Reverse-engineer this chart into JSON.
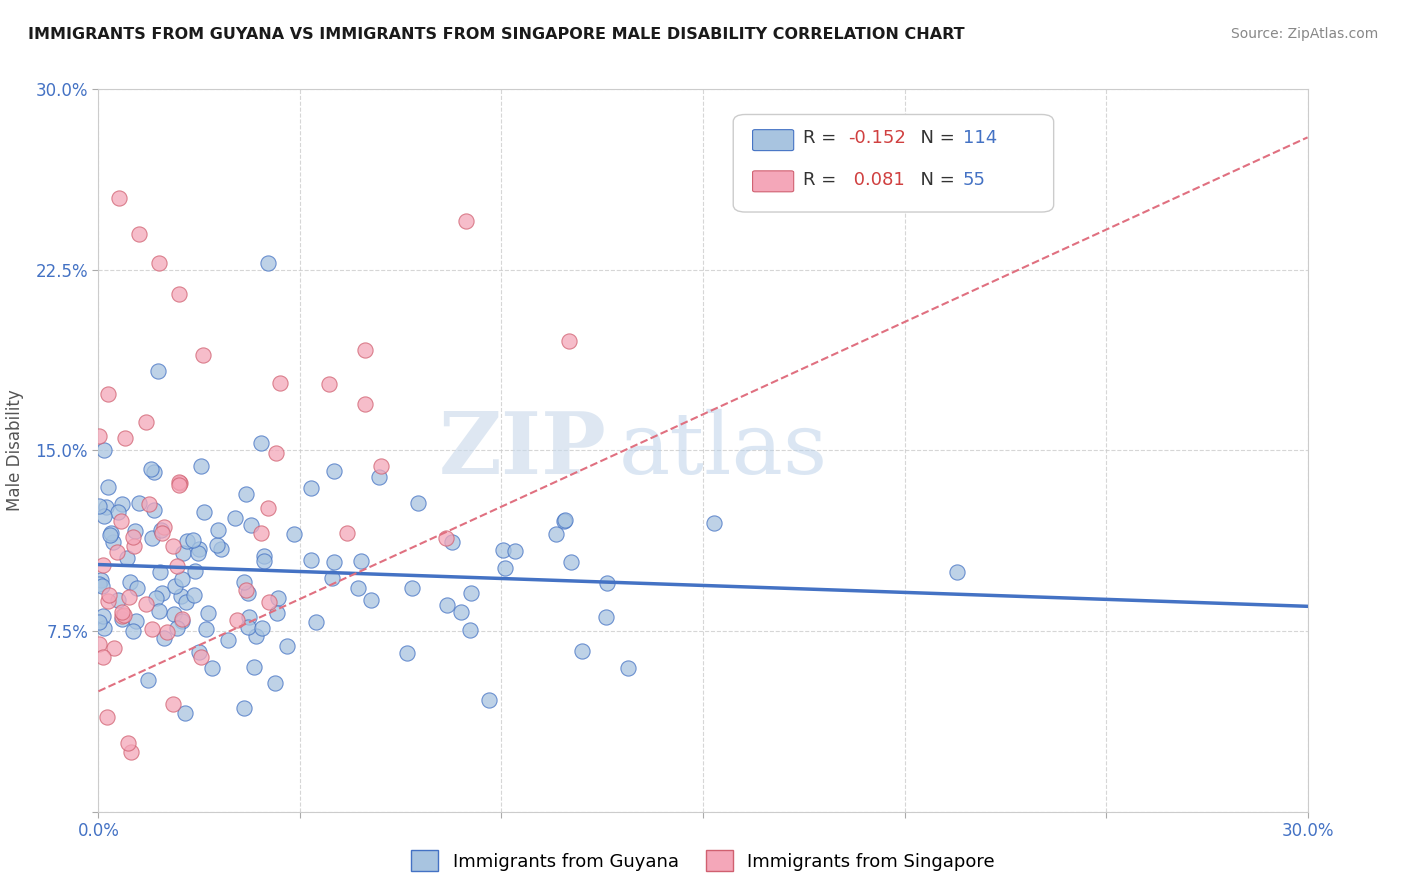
{
  "title": "IMMIGRANTS FROM GUYANA VS IMMIGRANTS FROM SINGAPORE MALE DISABILITY CORRELATION CHART",
  "source": "Source: ZipAtlas.com",
  "ylabel": "Male Disability",
  "xlim": [
    0.0,
    0.3
  ],
  "ylim": [
    0.0,
    0.3
  ],
  "xtick_positions": [
    0.0,
    0.05,
    0.1,
    0.15,
    0.2,
    0.25,
    0.3
  ],
  "ytick_positions": [
    0.0,
    0.075,
    0.15,
    0.225,
    0.3
  ],
  "ytick_labels": [
    "",
    "7.5%",
    "15.0%",
    "22.5%",
    "30.0%"
  ],
  "xtick_labels": [
    "0.0%",
    "",
    "",
    "",
    "",
    "",
    "30.0%"
  ],
  "guyana_R": -0.152,
  "guyana_N": 114,
  "singapore_R": 0.081,
  "singapore_N": 55,
  "guyana_color": "#a8c4e0",
  "singapore_color": "#f4a7b9",
  "trendline_guyana_color": "#4472c4",
  "trendline_singapore_color": "#e07080",
  "watermark_zip": "ZIP",
  "watermark_atlas": "atlas",
  "guyana_seed": 12,
  "singapore_seed": 99
}
